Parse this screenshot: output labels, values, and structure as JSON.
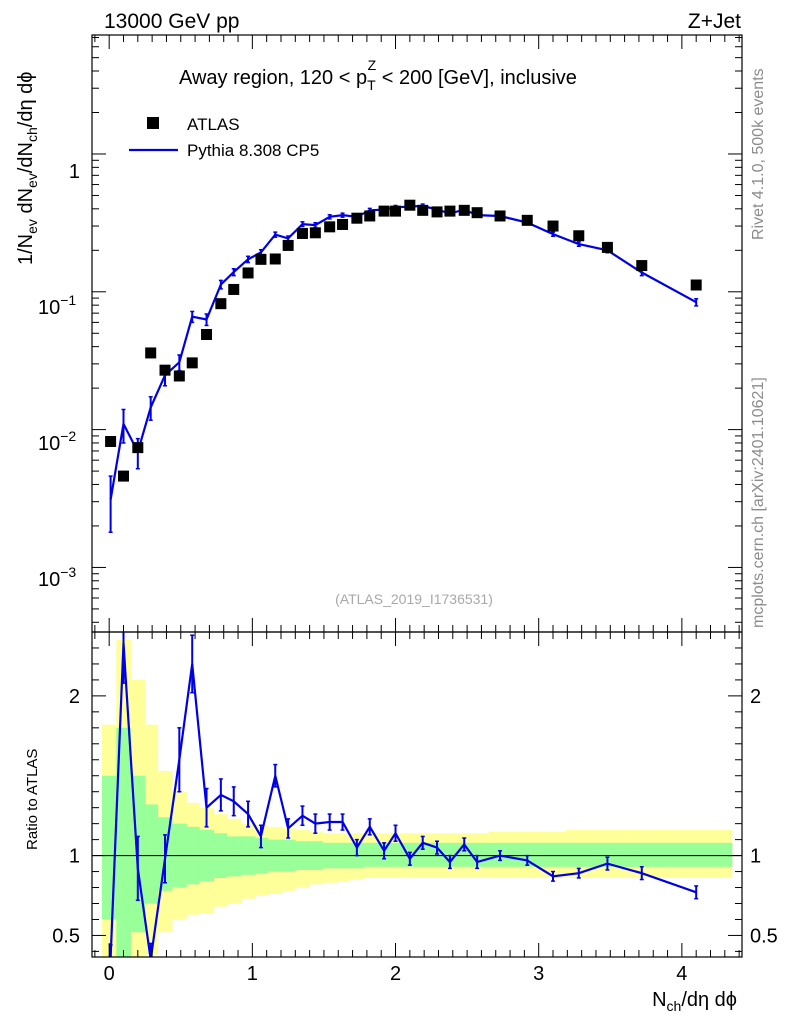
{
  "header": {
    "left": "13000 GeV pp",
    "right": "Z+Jet"
  },
  "side_labels": {
    "rivet": "Rivet 4.1.0,  500k events",
    "mcplots": "mcplots.cern.ch [arXiv:2401.10621]"
  },
  "main_title_parts": {
    "a": "Away region, 120 < p",
    "sub": "T",
    "sup": "Z",
    "b": " < 200 [GeV], inclusive"
  },
  "watermark": "(ATLAS_2019_I1736531)",
  "y_label_main": "1/N_ev dN_ev/dN_ch/dη dϕ",
  "y_label_ratio": "Ratio to ATLAS",
  "x_label": "N_ch/dη dϕ",
  "ytick_main": {
    "one": "1",
    "m1base": "10",
    "m1exp": "−1",
    "m2base": "10",
    "m2exp": "−2",
    "m3base": "10",
    "m3exp": "−3"
  },
  "legend": {
    "data_label": "ATLAS",
    "mc_label": "Pythia 8.308 CP5"
  },
  "colors": {
    "mc": "#0000e6",
    "band_outer": "#ffff99",
    "band_inner": "#99ff99",
    "data": "#000000"
  },
  "chart_data": [
    {
      "type": "scatter",
      "panel": "main",
      "yscale": "log",
      "xlim": [
        -0.12,
        4.42
      ],
      "ylim": [
        0.00034,
        7.3
      ],
      "xticks": [
        0,
        1,
        2,
        3,
        4
      ],
      "xticklabels": [
        "0",
        "1",
        "2",
        "3",
        "4"
      ],
      "ytick_values": [
        1,
        0.1,
        0.01,
        0.001
      ],
      "series": [
        {
          "name": "ATLAS",
          "marker": "square",
          "x": [
            0.01,
            0.1,
            0.2,
            0.29,
            0.39,
            0.49,
            0.58,
            0.68,
            0.78,
            0.87,
            0.97,
            1.06,
            1.16,
            1.25,
            1.35,
            1.44,
            1.54,
            1.63,
            1.73,
            1.82,
            1.92,
            2.0,
            2.1,
            2.19,
            2.29,
            2.38,
            2.48,
            2.57,
            2.73,
            2.92,
            3.1,
            3.28,
            3.48,
            3.72,
            4.1
          ],
          "values": [
            0.0082,
            0.0046,
            0.0074,
            0.036,
            0.027,
            0.0245,
            0.0305,
            0.049,
            0.082,
            0.104,
            0.137,
            0.172,
            0.173,
            0.217,
            0.265,
            0.268,
            0.296,
            0.308,
            0.342,
            0.355,
            0.385,
            0.385,
            0.425,
            0.39,
            0.38,
            0.385,
            0.39,
            0.375,
            0.355,
            0.33,
            0.3,
            0.255,
            0.21,
            0.155,
            0.112
          ]
        },
        {
          "name": "Pythia 8.308 CP5",
          "marker": "line",
          "x": [
            0.01,
            0.1,
            0.2,
            0.29,
            0.39,
            0.49,
            0.58,
            0.68,
            0.78,
            0.87,
            0.97,
            1.06,
            1.16,
            1.25,
            1.35,
            1.44,
            1.54,
            1.63,
            1.73,
            1.82,
            1.92,
            2.0,
            2.1,
            2.19,
            2.29,
            2.38,
            2.48,
            2.57,
            2.73,
            2.92,
            3.1,
            3.28,
            3.48,
            3.72,
            4.1
          ],
          "values": [
            0.0031,
            0.011,
            0.0069,
            0.0145,
            0.0248,
            0.0308,
            0.066,
            0.063,
            0.113,
            0.139,
            0.172,
            0.193,
            0.26,
            0.244,
            0.31,
            0.305,
            0.35,
            0.36,
            0.35,
            0.39,
            0.395,
            0.41,
            0.415,
            0.42,
            0.395,
            0.37,
            0.395,
            0.36,
            0.355,
            0.318,
            0.262,
            0.222,
            0.2,
            0.138,
            0.084
          ],
          "err_up": [
            0.0015,
            0.003,
            0.0017,
            0.0028,
            0.004,
            0.004,
            0.006,
            0.006,
            0.008,
            0.008,
            0.009,
            0.009,
            0.011,
            0.01,
            0.012,
            0.012,
            0.012,
            0.012,
            0.012,
            0.013,
            0.013,
            0.013,
            0.013,
            0.013,
            0.013,
            0.012,
            0.013,
            0.012,
            0.011,
            0.01,
            0.009,
            0.008,
            0.008,
            0.007,
            0.005
          ],
          "err_down": [
            0.0013,
            0.003,
            0.0017,
            0.0028,
            0.004,
            0.004,
            0.006,
            0.006,
            0.008,
            0.008,
            0.009,
            0.009,
            0.011,
            0.01,
            0.012,
            0.012,
            0.012,
            0.012,
            0.012,
            0.013,
            0.013,
            0.013,
            0.013,
            0.013,
            0.013,
            0.012,
            0.013,
            0.012,
            0.011,
            0.01,
            0.009,
            0.008,
            0.008,
            0.007,
            0.005
          ]
        }
      ]
    },
    {
      "type": "line",
      "panel": "ratio",
      "xlim": [
        -0.12,
        4.42
      ],
      "ylim": [
        0.365,
        2.4
      ],
      "xticks": [
        0,
        1,
        2,
        3,
        4
      ],
      "xticklabels": [
        "0",
        "1",
        "2",
        "3",
        "4"
      ],
      "yticks": [
        0.5,
        1,
        2
      ],
      "yticklabels": [
        "0.5",
        "1",
        "2"
      ],
      "reference_line": 1,
      "bins_edges": [
        -0.05,
        0.05,
        0.15,
        0.25,
        0.34,
        0.44,
        0.54,
        0.63,
        0.73,
        0.82,
        0.92,
        1.02,
        1.11,
        1.21,
        1.3,
        1.4,
        1.49,
        1.59,
        1.68,
        1.78,
        1.87,
        1.97,
        2.05,
        2.15,
        2.24,
        2.34,
        2.43,
        2.53,
        2.65,
        2.82,
        3.01,
        3.19,
        3.38,
        3.6,
        3.85,
        4.35
      ],
      "band_outer_lo": [
        0.34,
        0.34,
        0.34,
        0.38,
        0.52,
        0.6,
        0.63,
        0.64,
        0.68,
        0.7,
        0.73,
        0.75,
        0.76,
        0.78,
        0.8,
        0.82,
        0.83,
        0.84,
        0.85,
        0.86,
        0.86,
        0.86,
        0.86,
        0.86,
        0.86,
        0.86,
        0.86,
        0.86,
        0.86,
        0.86,
        0.86,
        0.86,
        0.86,
        0.86,
        0.86
      ],
      "band_outer_hi": [
        1.82,
        2.35,
        2.1,
        1.82,
        1.53,
        1.4,
        1.33,
        1.3,
        1.26,
        1.23,
        1.2,
        1.19,
        1.18,
        1.17,
        1.16,
        1.15,
        1.14,
        1.14,
        1.14,
        1.14,
        1.14,
        1.14,
        1.14,
        1.14,
        1.14,
        1.14,
        1.14,
        1.14,
        1.15,
        1.15,
        1.15,
        1.16,
        1.16,
        1.16,
        1.16
      ],
      "band_inner_lo": [
        0.6,
        0.34,
        0.52,
        0.7,
        0.78,
        0.8,
        0.82,
        0.84,
        0.86,
        0.87,
        0.88,
        0.89,
        0.9,
        0.9,
        0.91,
        0.91,
        0.92,
        0.92,
        0.92,
        0.93,
        0.93,
        0.93,
        0.93,
        0.93,
        0.93,
        0.93,
        0.93,
        0.93,
        0.93,
        0.93,
        0.93,
        0.93,
        0.93,
        0.93,
        0.93
      ],
      "band_inner_hi": [
        1.5,
        1.8,
        1.5,
        1.32,
        1.24,
        1.2,
        1.18,
        1.16,
        1.14,
        1.12,
        1.12,
        1.11,
        1.1,
        1.1,
        1.09,
        1.09,
        1.08,
        1.08,
        1.08,
        1.08,
        1.08,
        1.08,
        1.08,
        1.08,
        1.08,
        1.08,
        1.08,
        1.08,
        1.08,
        1.08,
        1.08,
        1.08,
        1.08,
        1.08,
        1.08
      ],
      "series": [
        {
          "name": "Pythia 8.308 CP5 / ATLAS",
          "x": [
            0.01,
            0.1,
            0.2,
            0.29,
            0.39,
            0.49,
            0.58,
            0.68,
            0.78,
            0.87,
            0.97,
            1.06,
            1.16,
            1.25,
            1.35,
            1.44,
            1.54,
            1.63,
            1.73,
            1.82,
            1.92,
            2.0,
            2.1,
            2.19,
            2.29,
            2.38,
            2.48,
            2.57,
            2.73,
            2.92,
            3.1,
            3.28,
            3.48,
            3.72,
            4.1
          ],
          "values": [
            0.36,
            2.33,
            0.92,
            0.35,
            0.98,
            1.6,
            2.2,
            1.3,
            1.38,
            1.34,
            1.26,
            1.12,
            1.5,
            1.17,
            1.25,
            1.2,
            1.21,
            1.21,
            1.05,
            1.18,
            1.03,
            1.14,
            0.98,
            1.08,
            1.05,
            0.96,
            1.07,
            0.96,
            1.0,
            0.97,
            0.87,
            0.89,
            0.95,
            0.89,
            0.77
          ],
          "err_up": [
            0.08,
            0.25,
            0.2,
            0.1,
            0.15,
            0.2,
            0.18,
            0.12,
            0.1,
            0.09,
            0.08,
            0.07,
            0.07,
            0.06,
            0.06,
            0.06,
            0.05,
            0.05,
            0.05,
            0.05,
            0.05,
            0.05,
            0.04,
            0.04,
            0.04,
            0.04,
            0.04,
            0.04,
            0.03,
            0.03,
            0.03,
            0.03,
            0.04,
            0.04,
            0.04
          ],
          "err_down": [
            0.08,
            0.25,
            0.2,
            0.1,
            0.15,
            0.2,
            0.18,
            0.12,
            0.1,
            0.09,
            0.08,
            0.07,
            0.07,
            0.06,
            0.06,
            0.06,
            0.05,
            0.05,
            0.05,
            0.05,
            0.05,
            0.05,
            0.04,
            0.04,
            0.04,
            0.04,
            0.04,
            0.04,
            0.03,
            0.03,
            0.03,
            0.03,
            0.04,
            0.04,
            0.04
          ]
        }
      ]
    }
  ]
}
